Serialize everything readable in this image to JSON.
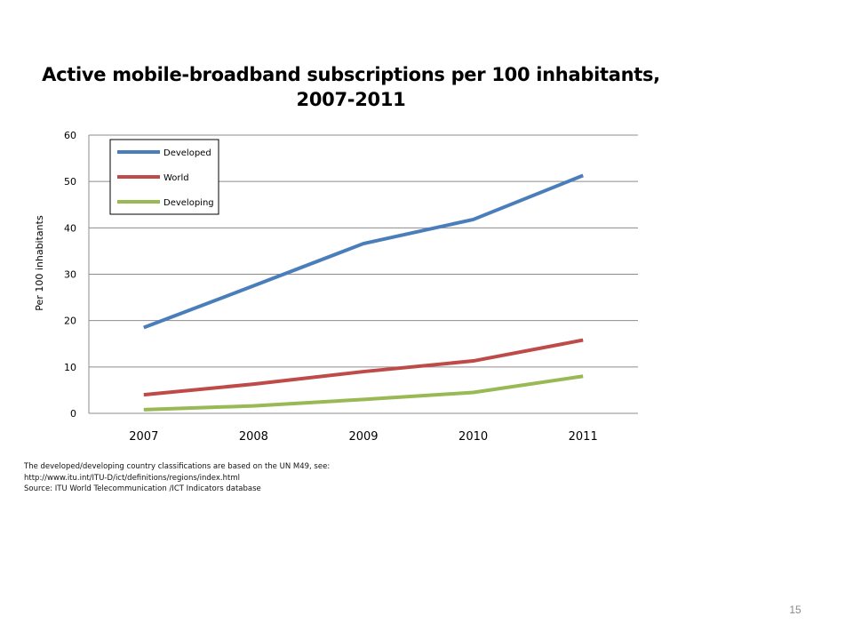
{
  "slide": {
    "page_number": "15",
    "notes": [
      "The developed/developing country classifications are based on the UN M49, see:",
      "http://www.itu.int/ITU-D/ict/definitions/regions/index.html",
      "Source:  ITU World Telecommunication /ICT Indicators database"
    ]
  },
  "chart_data": {
    "type": "line",
    "title": [
      "Active mobile-broadband subscriptions per 100 inhabitants,",
      "2007-2011"
    ],
    "xlabel": "",
    "ylabel": "Per 100 inhabitants",
    "categories": [
      "2007",
      "2008",
      "2009",
      "2010",
      "2011"
    ],
    "ylim": [
      0,
      60
    ],
    "yticks": [
      0,
      10,
      20,
      30,
      40,
      50,
      60
    ],
    "grid": true,
    "legend_position": "top-left",
    "series": [
      {
        "name": "Developed",
        "color": "#4a7ebb",
        "values": [
          18.5,
          27.5,
          36.6,
          41.8,
          51.3
        ]
      },
      {
        "name": "World",
        "color": "#be4b48",
        "values": [
          4.0,
          6.3,
          9.0,
          11.3,
          15.8
        ]
      },
      {
        "name": "Developing",
        "color": "#98b954",
        "values": [
          0.8,
          1.6,
          3.0,
          4.5,
          8.0
        ]
      }
    ]
  }
}
